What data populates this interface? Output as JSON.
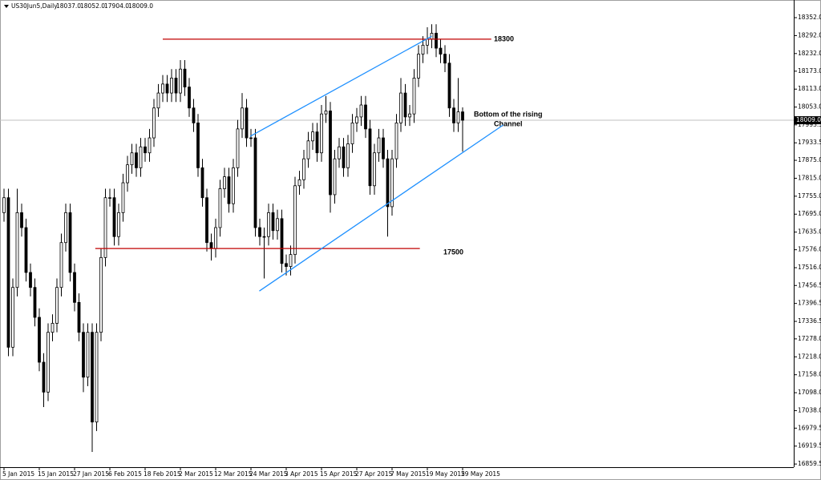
{
  "chart_data": {
    "type": "candlestick",
    "title": "US30Jun5,Daily",
    "ohlc_labels": [
      "18037.0",
      "18052.0",
      "17904.0",
      "18009.0"
    ],
    "categories": [
      "5 Jan 2015",
      null,
      null,
      null,
      null,
      null,
      null,
      null,
      "15 Jan 2015",
      null,
      null,
      null,
      null,
      null,
      null,
      null,
      "27 Jan 2015",
      null,
      null,
      null,
      null,
      null,
      null,
      null,
      "6 Feb 2015",
      null,
      null,
      null,
      null,
      null,
      null,
      null,
      "18 Feb 2015",
      null,
      null,
      null,
      null,
      null,
      null,
      null,
      "2 Mar 2015",
      null,
      null,
      null,
      null,
      null,
      null,
      null,
      "12 Mar 2015",
      null,
      null,
      null,
      null,
      null,
      null,
      null,
      "24 Mar 2015",
      null,
      null,
      null,
      null,
      null,
      null,
      null,
      "3 Apr 2015",
      null,
      null,
      null,
      null,
      null,
      null,
      null,
      "15 Apr 2015",
      null,
      null,
      null,
      null,
      null,
      null,
      null,
      "27 Apr 2015",
      null,
      null,
      null,
      null,
      null,
      null,
      null,
      "7 May 2015",
      null,
      null,
      null,
      null,
      null,
      null,
      null,
      "19 May 2015",
      null,
      null,
      null,
      null,
      null,
      null,
      null,
      "29 May 2015"
    ],
    "open": [
      17700,
      17750,
      17250,
      17450,
      17700,
      17650,
      17500,
      17450,
      17350,
      17200,
      17100,
      17300,
      17330,
      17450,
      17600,
      17700,
      17500,
      17400,
      17300,
      17150,
      17300,
      17000,
      17300,
      17550,
      17750,
      17750,
      17620,
      17700,
      17800,
      17860,
      17900,
      17850,
      17920,
      17900,
      17950,
      18050,
      18100,
      18130,
      18100,
      18150,
      18100,
      18180,
      18120,
      18050,
      18000,
      17850,
      17750,
      17600,
      17580,
      17650,
      17780,
      17820,
      17730,
      17850,
      17980,
      18050,
      17950,
      17950,
      17650,
      17620,
      17620,
      17700,
      17640,
      17680,
      17530,
      17520,
      17560,
      17790,
      17810,
      17880,
      17940,
      17970,
      17900,
      18030,
      18040,
      17760,
      17880,
      17920,
      17850,
      17930,
      18000,
      18020,
      18060,
      17980,
      17790,
      17900,
      17950,
      17880,
      17720,
      17880,
      18000,
      18100,
      18020,
      18030,
      18150,
      18230,
      18260,
      18280,
      18300,
      18250,
      18230,
      18200,
      18050,
      18000,
      18037
    ],
    "high": [
      17780,
      17780,
      17480,
      17780,
      17730,
      17680,
      17530,
      17480,
      17380,
      17230,
      17330,
      17360,
      17480,
      17630,
      17730,
      17730,
      17530,
      17430,
      17330,
      17330,
      17330,
      17330,
      17580,
      17780,
      17780,
      17780,
      17730,
      17830,
      17890,
      17930,
      17930,
      17950,
      17950,
      17980,
      18080,
      18130,
      18160,
      18160,
      18180,
      18180,
      18210,
      18210,
      18150,
      18080,
      18030,
      17880,
      17780,
      17630,
      17680,
      17810,
      17850,
      17850,
      17880,
      18010,
      18100,
      18080,
      17980,
      17980,
      17680,
      17650,
      17730,
      17730,
      17710,
      17710,
      17560,
      17590,
      17820,
      17840,
      17910,
      17970,
      18000,
      18000,
      18060,
      18090,
      18070,
      17910,
      17950,
      17950,
      17960,
      18030,
      18050,
      18090,
      18090,
      18010,
      17930,
      17980,
      17980,
      17910,
      17910,
      18030,
      18150,
      18130,
      18060,
      18180,
      18260,
      18290,
      18320,
      18330,
      18330,
      18280,
      18260,
      18230,
      18080,
      18150,
      18052
    ],
    "low": [
      17670,
      17220,
      17220,
      17420,
      17620,
      17470,
      17420,
      17320,
      17170,
      17050,
      17070,
      17270,
      17300,
      17420,
      17570,
      17470,
      17370,
      17270,
      17100,
      17120,
      16900,
      16970,
      17270,
      17520,
      17720,
      17590,
      17590,
      17670,
      17770,
      17830,
      17820,
      17820,
      17870,
      17870,
      17920,
      18020,
      18070,
      18070,
      18070,
      18070,
      18070,
      18090,
      18020,
      17970,
      17820,
      17720,
      17570,
      17540,
      17550,
      17620,
      17750,
      17700,
      17700,
      17820,
      17950,
      17920,
      17920,
      17620,
      17590,
      17480,
      17590,
      17610,
      17610,
      17500,
      17490,
      17490,
      17530,
      17760,
      17780,
      17850,
      17910,
      17870,
      17870,
      18000,
      17700,
      17730,
      17850,
      17820,
      17820,
      17900,
      17970,
      17990,
      17950,
      17760,
      17760,
      17870,
      17850,
      17620,
      17690,
      17850,
      17970,
      17990,
      17990,
      18000,
      18120,
      18200,
      18230,
      18250,
      18220,
      18200,
      18170,
      18020,
      17970,
      17970,
      17904
    ],
    "close": [
      17750,
      17250,
      17450,
      17700,
      17650,
      17500,
      17450,
      17350,
      17200,
      17100,
      17300,
      17330,
      17450,
      17600,
      17700,
      17500,
      17400,
      17300,
      17150,
      17300,
      17000,
      17300,
      17550,
      17750,
      17750,
      17620,
      17700,
      17800,
      17860,
      17900,
      17850,
      17920,
      17900,
      17950,
      18050,
      18100,
      18130,
      18100,
      18150,
      18100,
      18180,
      18120,
      18050,
      18000,
      17850,
      17750,
      17600,
      17580,
      17650,
      17780,
      17820,
      17730,
      17850,
      17980,
      18050,
      17950,
      17950,
      17650,
      17620,
      17620,
      17700,
      17640,
      17680,
      17530,
      17520,
      17560,
      17790,
      17810,
      17880,
      17940,
      17970,
      17900,
      18030,
      18040,
      17760,
      17880,
      17920,
      17850,
      17930,
      18000,
      18020,
      18060,
      17980,
      17790,
      17900,
      17950,
      17880,
      17720,
      17880,
      18000,
      18100,
      18020,
      18030,
      18150,
      18230,
      18260,
      18280,
      18300,
      18250,
      18230,
      18200,
      18050,
      18000,
      18037,
      18009
    ],
    "ylim": [
      16849,
      18411
    ],
    "yticks": [
      {
        "value": 18352,
        "label": "18352.0"
      },
      {
        "value": 18292,
        "label": "18292.0"
      },
      {
        "value": 18232,
        "label": "18232.0"
      },
      {
        "value": 18173,
        "label": "18173.0"
      },
      {
        "value": 18113,
        "label": "18113.0"
      },
      {
        "value": 18053,
        "label": "18053.0"
      },
      {
        "value": 17993.5,
        "label": "17993.5"
      },
      {
        "value": 17933.5,
        "label": "17933.5"
      },
      {
        "value": 17875,
        "label": "17875.0"
      },
      {
        "value": 17815,
        "label": "17815.0"
      },
      {
        "value": 17755,
        "label": "17755.0"
      },
      {
        "value": 17695,
        "label": "17695.0"
      },
      {
        "value": 17635,
        "label": "17635.0"
      },
      {
        "value": 17576,
        "label": "17576.0"
      },
      {
        "value": 17516,
        "label": "17516.0"
      },
      {
        "value": 17456.5,
        "label": "17456.5"
      },
      {
        "value": 17396.5,
        "label": "17396.5"
      },
      {
        "value": 17336.5,
        "label": "17336.5"
      },
      {
        "value": 17278,
        "label": "17278.0"
      },
      {
        "value": 17218,
        "label": "17218.0"
      },
      {
        "value": 17158,
        "label": "17158.0"
      },
      {
        "value": 17098,
        "label": "17098.0"
      },
      {
        "value": 17038,
        "label": "17038.0"
      },
      {
        "value": 16979.5,
        "label": "16979.5"
      },
      {
        "value": 16919.5,
        "label": "16919.5"
      },
      {
        "value": 16859.5,
        "label": "16859.5"
      }
    ],
    "last_price": {
      "value": 18009,
      "label": "18009.0"
    },
    "lines": [
      {
        "color": "#c00000",
        "x": [
          36,
          110.5
        ],
        "y": [
          18280,
          18280
        ]
      },
      {
        "color": "#c00000",
        "x": [
          20.7,
          94.3
        ],
        "y": [
          17580,
          17580
        ]
      },
      {
        "color": "#1e90ff",
        "x": [
          55.8,
          97
        ],
        "y": [
          17955,
          18290
        ]
      },
      {
        "color": "#1e90ff",
        "x": [
          57.9,
          113.2
        ],
        "y": [
          17438,
          17993
        ]
      }
    ],
    "annotations": [
      "18300",
      "17500",
      "Bottom of the rising",
      "Channel"
    ],
    "bull_color": "#ffffff",
    "bear_color": "#000000"
  }
}
